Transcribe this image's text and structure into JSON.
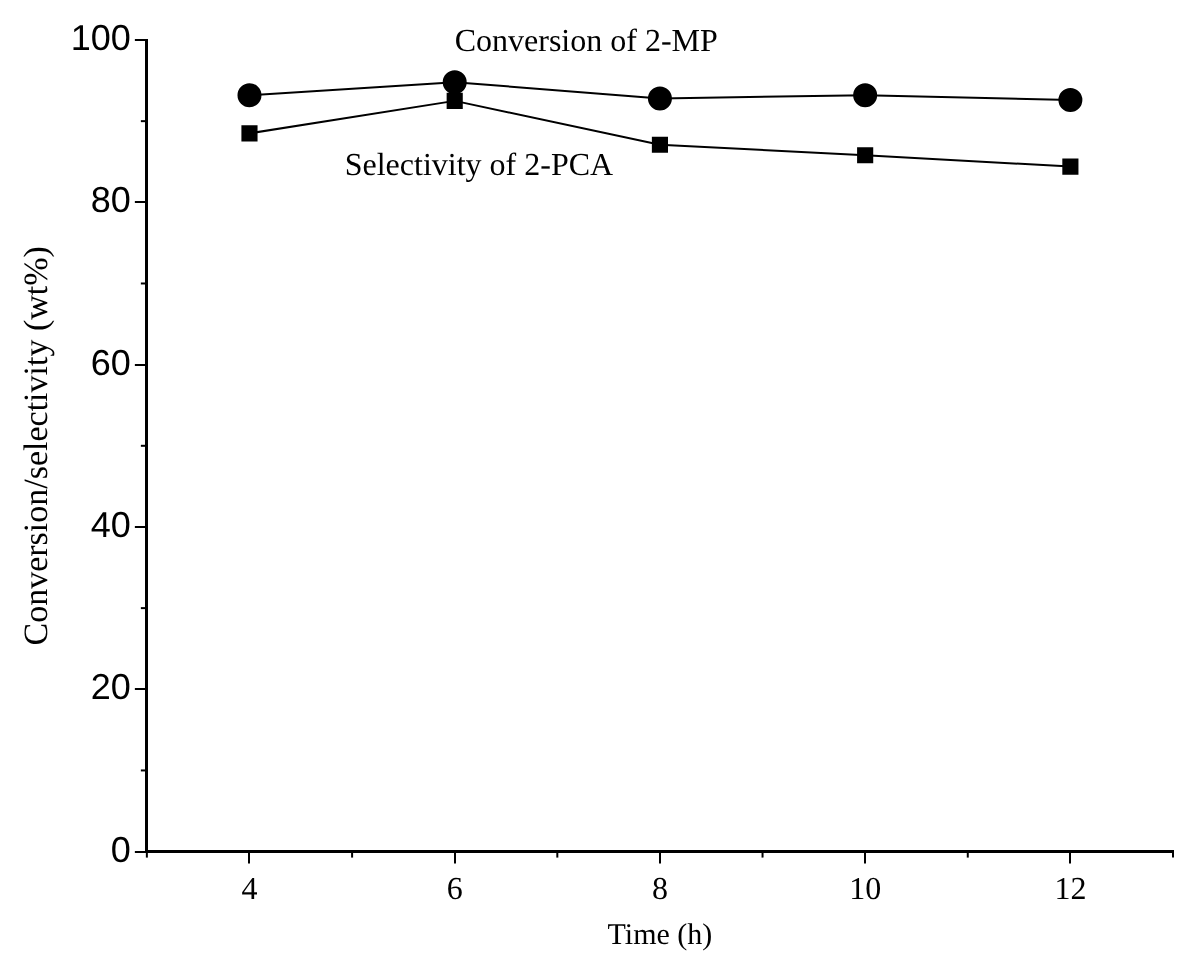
{
  "chart_data": {
    "type": "line",
    "xlabel": "Time (h)",
    "ylabel": "Conversion/selectivity (wt%)",
    "x": [
      4,
      6,
      8,
      10,
      12
    ],
    "series": [
      {
        "name": "Conversion of 2-MP",
        "color": "#000000",
        "marker": "circle",
        "values": [
          93.2,
          94.8,
          92.8,
          93.2,
          92.6
        ]
      },
      {
        "name": "Selectivity of 2-PCA",
        "color": "#000000",
        "marker": "square",
        "values": [
          88.5,
          92.5,
          87.1,
          85.8,
          84.4
        ]
      }
    ],
    "xlim": [
      3,
      13
    ],
    "xticks": [
      4,
      6,
      8,
      10,
      12
    ],
    "ylim": [
      0,
      100
    ],
    "yticks": [
      0,
      20,
      40,
      60,
      80,
      100
    ],
    "grid": false,
    "legend": false,
    "line_style": "solid"
  }
}
